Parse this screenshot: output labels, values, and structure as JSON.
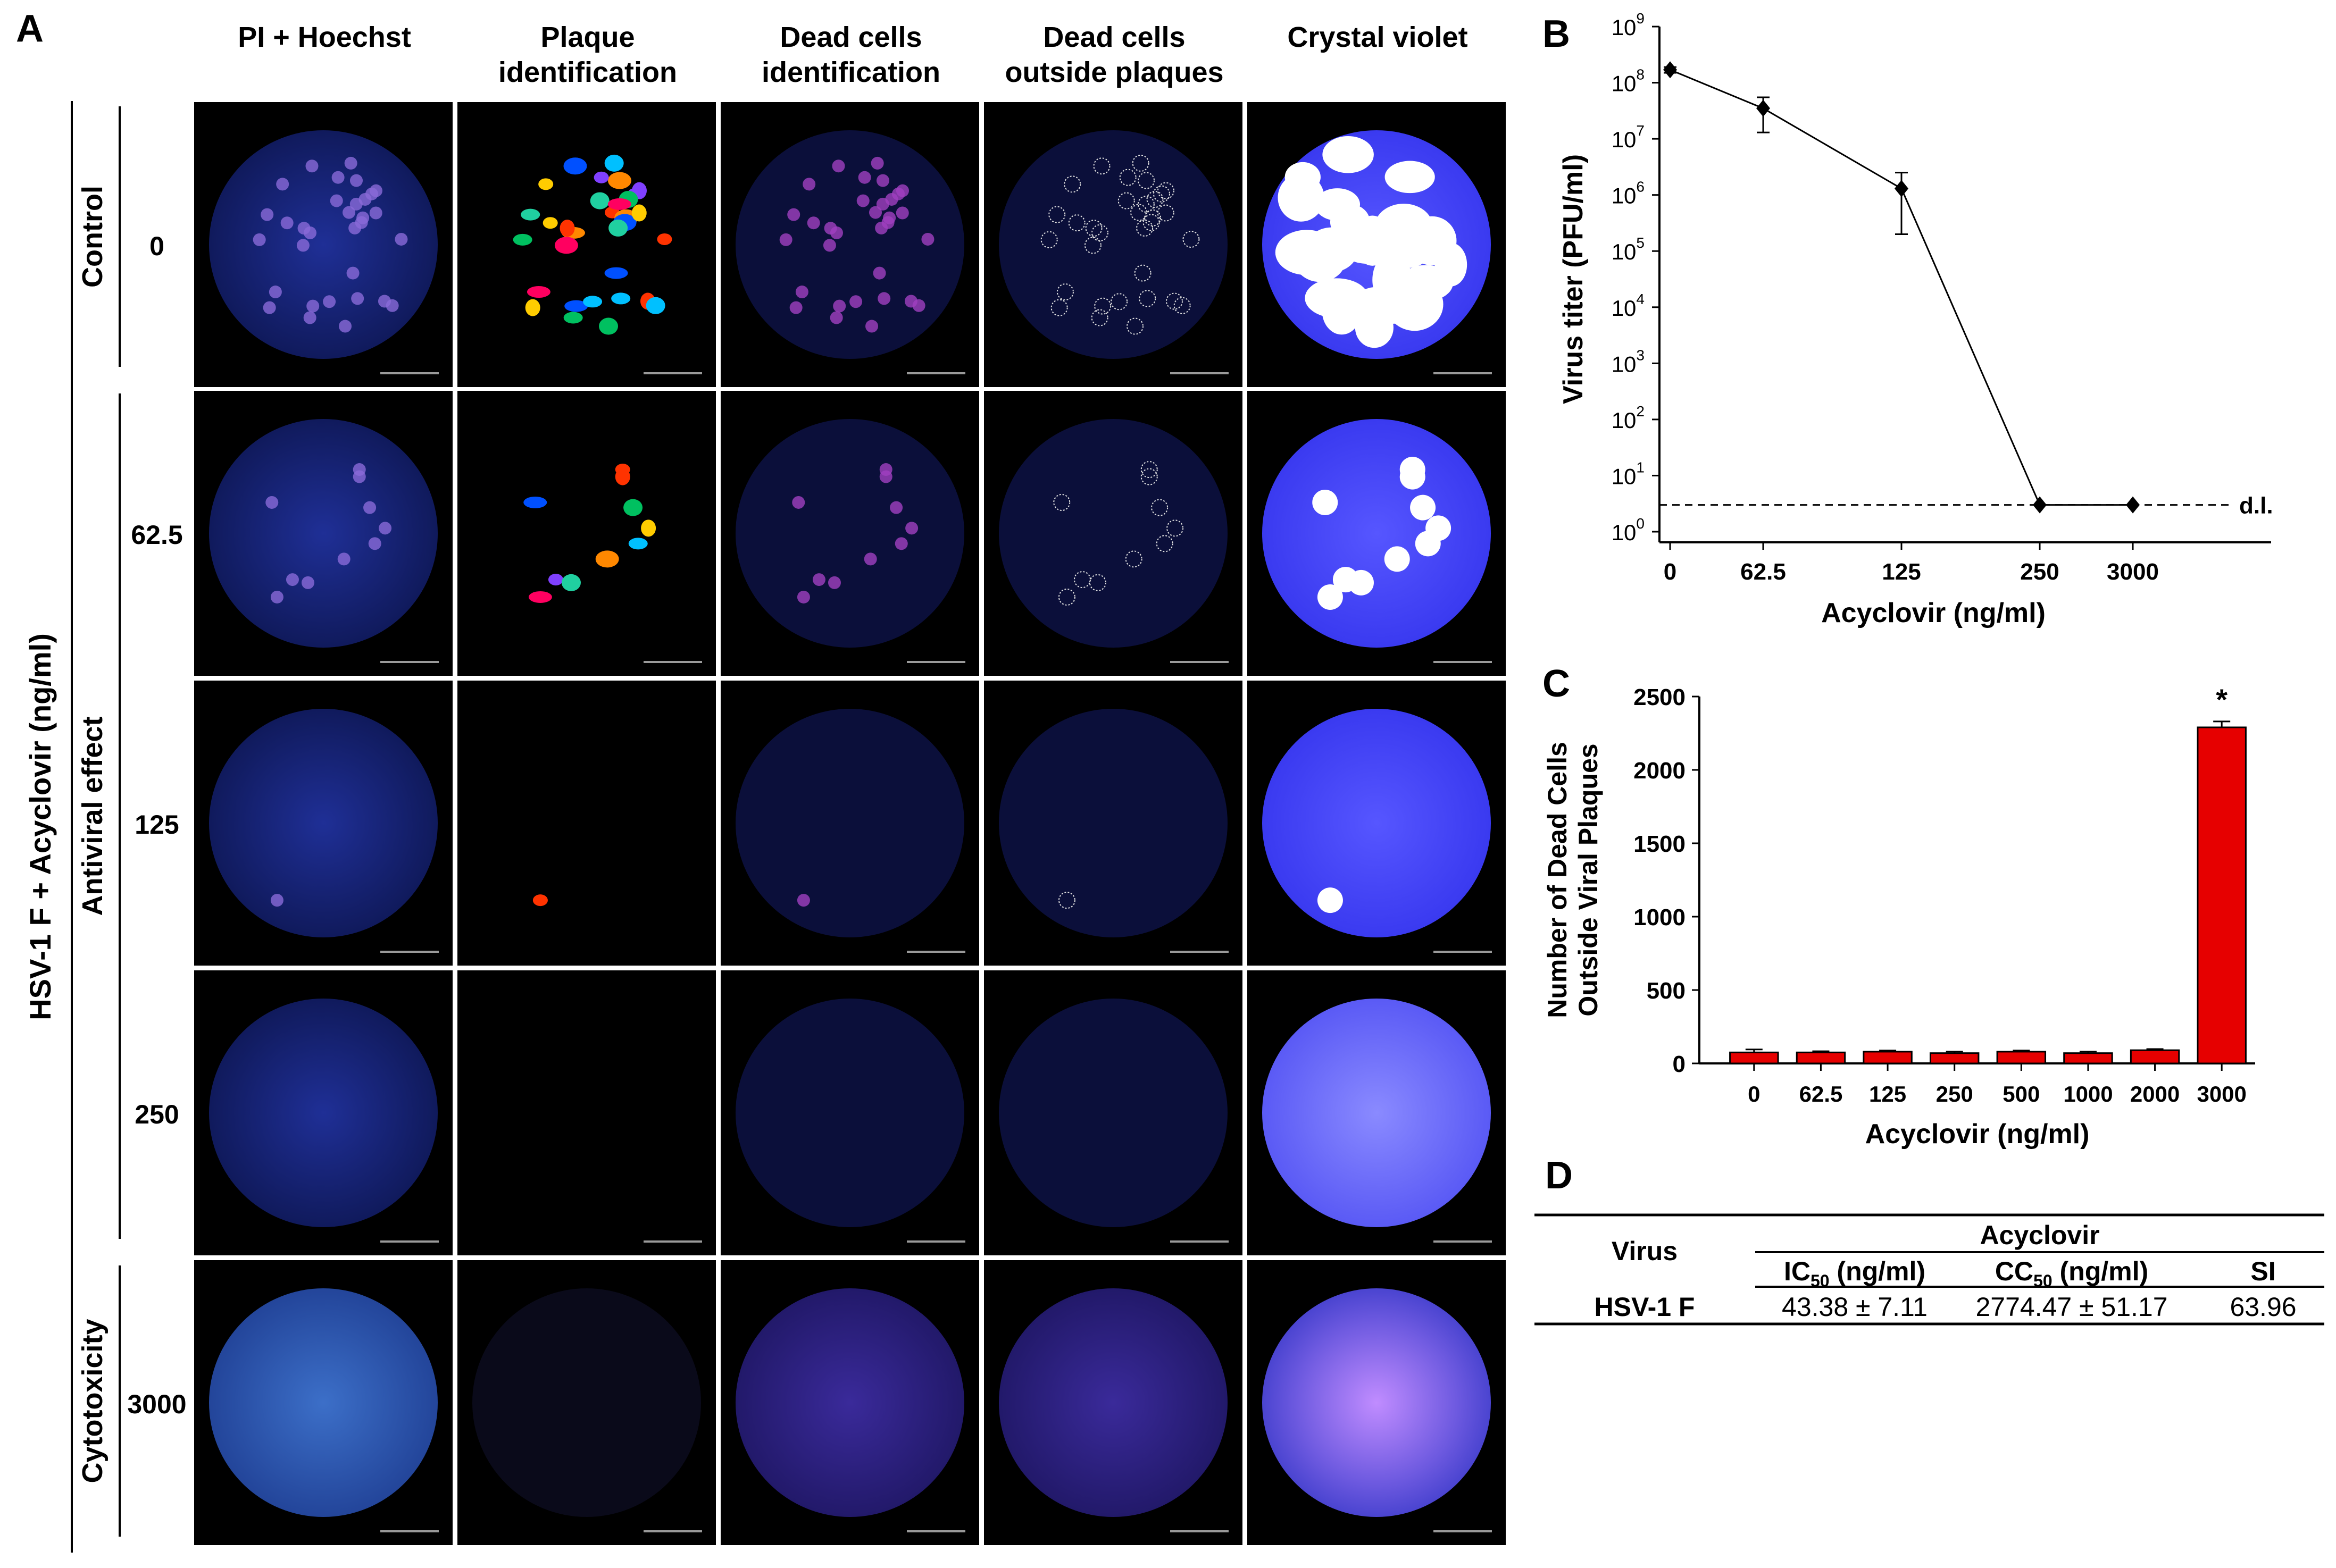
{
  "panel_A": {
    "letter": "A",
    "column_headers": [
      [
        "PI + Hoechst"
      ],
      [
        "Plaque",
        "identification"
      ],
      [
        "Dead cells",
        "identification"
      ],
      [
        "Dead cells",
        "outside plaques"
      ],
      [
        "Crystal violet"
      ]
    ],
    "outer_label": "HSV-1 F + Acyclovir (ng/ml)",
    "group_labels": [
      "Control",
      "Antiviral effect",
      "Cytotoxicity"
    ],
    "row_labels": [
      "0",
      "62.5",
      "125",
      "250",
      "3000"
    ]
  },
  "chart_data": [
    {
      "panel": "B",
      "type": "line",
      "x": [
        "0",
        "62.5",
        "125",
        "250",
        "3000"
      ],
      "y": [
        170000000,
        35000000,
        1300000,
        3,
        3
      ],
      "y_error_upper": [
        190000000,
        55000000,
        2500000,
        3,
        3
      ],
      "y_error_lower": [
        150000000,
        13000000,
        200000,
        3,
        3
      ],
      "xlabel": "Acyclovir (ng/ml)",
      "ylabel": "Virus titer (PFU/ml)",
      "yscale": "log",
      "ylim": [
        1,
        1000000000
      ],
      "ytick_labels": [
        [
          "10",
          "0"
        ],
        [
          "10",
          "1"
        ],
        [
          "10",
          "2"
        ],
        [
          "10",
          "3"
        ],
        [
          "10",
          "4"
        ],
        [
          "10",
          "5"
        ],
        [
          "10",
          "6"
        ],
        [
          "10",
          "7"
        ],
        [
          "10",
          "8"
        ],
        [
          "10",
          "9"
        ]
      ],
      "detection_limit": {
        "value": 3,
        "label": "d.l."
      },
      "marker": "diamond",
      "color": "#000000"
    },
    {
      "panel": "C",
      "type": "bar",
      "categories": [
        "0",
        "62.5",
        "125",
        "250",
        "500",
        "1000",
        "2000",
        "3000"
      ],
      "values": [
        75,
        75,
        80,
        70,
        80,
        70,
        90,
        2290
      ],
      "errors": [
        20,
        8,
        8,
        10,
        8,
        10,
        8,
        40
      ],
      "xlabel": "Acyclovir (ng/ml)",
      "ylabel_lines": [
        "Number of Dead Cells",
        "Outside Viral Plaques"
      ],
      "ylim": [
        0,
        2500
      ],
      "yticks": [
        0,
        500,
        1000,
        1500,
        2000,
        2500
      ],
      "annotations": [
        {
          "category": "3000",
          "text": "*"
        }
      ],
      "bar_color": "#e60000",
      "grid": false
    }
  ],
  "panel_D": {
    "letter": "D",
    "group_header": "Acyclovir",
    "col_virus": "Virus",
    "col_ic50": {
      "base": "IC",
      "sub": "50",
      "unit": " (ng/ml)"
    },
    "col_cc50": {
      "base": "CC",
      "sub": "50",
      "unit": " (ng/ml)"
    },
    "col_si": "SI",
    "rows": [
      {
        "virus": "HSV-1 F",
        "ic50": "43.38 ± 7.11",
        "cc50": "2774.47 ± 51.17",
        "si": "63.96"
      }
    ]
  },
  "colors": {
    "hoechst_blue": "#1b2a8c",
    "crystal_violet_blue": "#3b3bff",
    "plaque_white": "#ffffff",
    "bar_red": "#e60000"
  }
}
